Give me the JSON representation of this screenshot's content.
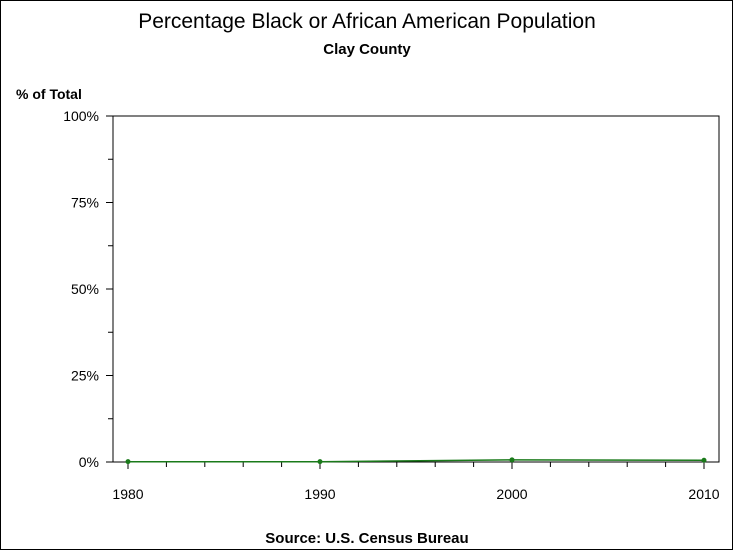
{
  "chart_data": {
    "type": "line",
    "title": "Percentage Black or African American Population",
    "subtitle": "Clay County",
    "ylabel": "% of Total",
    "xlabel": "",
    "source": "Source: U.S. Census Bureau",
    "x": [
      1980,
      1990,
      2000,
      2010
    ],
    "x_tick_labels": [
      "1980",
      "1990",
      "2000",
      "2010"
    ],
    "xlim": [
      1980,
      2010
    ],
    "ylim": [
      0,
      100
    ],
    "y_ticks": [
      0,
      25,
      50,
      75,
      100
    ],
    "y_tick_labels": [
      "0%",
      "25%",
      "50%",
      "75%",
      "100%"
    ],
    "series": [
      {
        "values": [
          0.1,
          0.1,
          0.6,
          0.5
        ]
      }
    ],
    "grid": false,
    "colors": {
      "line": "#1a7a1a",
      "axis": "#000000"
    }
  }
}
